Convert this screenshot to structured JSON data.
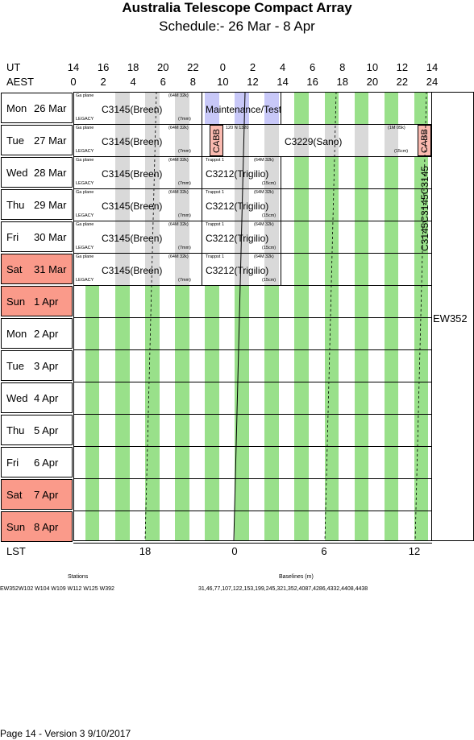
{
  "header": {
    "title": "Australia Telescope Compact Array",
    "subtitle": "Schedule:- 26 Mar - 8  Apr"
  },
  "axes": {
    "ut_label": "UT",
    "aest_label": "AEST",
    "lst_label": "LST",
    "ut_ticks": [
      "14",
      "16",
      "18",
      "20",
      "22",
      "0",
      "2",
      "4",
      "6",
      "8",
      "10",
      "12",
      "14"
    ],
    "aest_ticks": [
      "0",
      "2",
      "4",
      "6",
      "8",
      "10",
      "12",
      "14",
      "16",
      "18",
      "20",
      "22",
      "24"
    ],
    "lst_ticks": [
      "18",
      "0",
      "6",
      "12"
    ]
  },
  "days": [
    {
      "dow": "Mon",
      "date": "26 Mar",
      "weekend": false
    },
    {
      "dow": "Tue",
      "date": "27 Mar",
      "weekend": false
    },
    {
      "dow": "Wed",
      "date": "28 Mar",
      "weekend": false
    },
    {
      "dow": "Thu",
      "date": "29 Mar",
      "weekend": false
    },
    {
      "dow": "Fri",
      "date": "30 Mar",
      "weekend": false
    },
    {
      "dow": "Sat",
      "date": "31 Mar",
      "weekend": true
    },
    {
      "dow": "Sun",
      "date": "1  Apr",
      "weekend": true
    },
    {
      "dow": "Mon",
      "date": "2  Apr",
      "weekend": false
    },
    {
      "dow": "Tue",
      "date": "3  Apr",
      "weekend": false
    },
    {
      "dow": "Wed",
      "date": "4  Apr",
      "weekend": false
    },
    {
      "dow": "Thu",
      "date": "5  Apr",
      "weekend": false
    },
    {
      "dow": "Fri",
      "date": "6  Apr",
      "weekend": false
    },
    {
      "dow": "Sat",
      "date": "7  Apr",
      "weekend": true
    },
    {
      "dow": "Sun",
      "date": "8  Apr",
      "weekend": true
    }
  ],
  "blocks": {
    "c3145": "C3145(Breen)",
    "maintenance": "Maintenance/Test",
    "c3212": "C3212(Trigilio)",
    "c3229": "C3229(Sano)",
    "cabb": "CABB",
    "galplane": "Ga plane",
    "legacy": "LEGACY",
    "cfg_64m32k": "(64M 32k)",
    "cfg_7mm": "(7mm)",
    "cfg_1m05k": "(1M 05k)",
    "cfg_15cm": "(15cm)",
    "trappist": "Trappst 1",
    "lowband": "120 N 1320",
    "vertical_c3145": "C3145C3145C3145",
    "ew352": "EW352"
  },
  "footer": {
    "stations_label": "Stations",
    "stations": "EW352W102 W104 W109 W112 W125 W392",
    "baselines_label": "Baselines (m)",
    "baselines": "31,46,77,107,122,153,199,245,321,352,4087,4286,4332,4408,4438",
    "page": "Page 14 - Version 3  9/10/2017"
  },
  "colors": {
    "green": "#99e08a",
    "grey": "#d9d9d9",
    "lavender": "#c8c8f8",
    "weekend": "#fa9a8a",
    "cabb": "#fabab0"
  }
}
